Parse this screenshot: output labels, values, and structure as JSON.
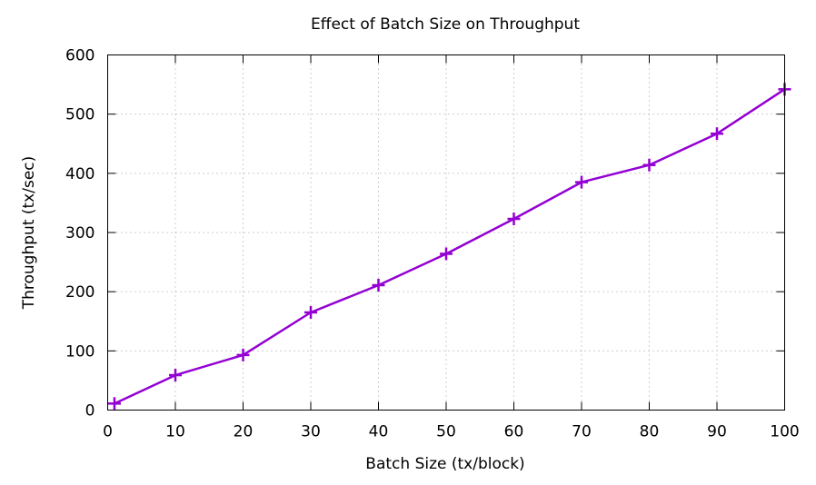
{
  "chart_data": {
    "type": "line",
    "title": "Effect of Batch Size on Throughput",
    "xlabel": "Batch Size (tx/block)",
    "ylabel": "Throughput (tx/sec)",
    "xlim": [
      0,
      100
    ],
    "ylim": [
      0,
      600
    ],
    "xticks": [
      0,
      10,
      20,
      30,
      40,
      50,
      60,
      70,
      80,
      90,
      100
    ],
    "yticks": [
      0,
      100,
      200,
      300,
      400,
      500,
      600
    ],
    "grid": true,
    "series": [
      {
        "name": "Throughput",
        "color": "#9400d3",
        "marker": "plus",
        "x": [
          1,
          10,
          20,
          30,
          40,
          50,
          60,
          70,
          80,
          90,
          100
        ],
        "y": [
          11,
          59,
          93,
          165,
          211,
          264,
          323,
          385,
          414,
          467,
          542
        ]
      }
    ]
  }
}
